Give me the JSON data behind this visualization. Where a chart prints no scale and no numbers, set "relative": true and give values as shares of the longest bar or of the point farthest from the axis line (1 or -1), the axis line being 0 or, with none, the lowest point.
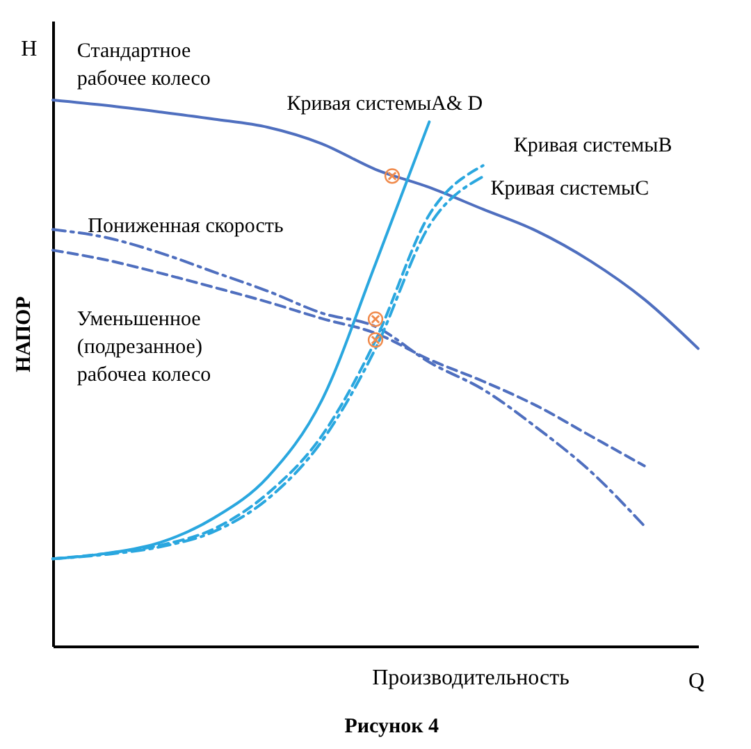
{
  "chart_data": {
    "type": "line",
    "relative": true,
    "tick_labels": false,
    "xlabel": "Производительность",
    "ylabel": "НАПОР",
    "annotations": [
      "H",
      "Q",
      "Рисунок 4",
      {
        "text": "⊗",
        "y": 0.86
      },
      {
        "text": "⊗",
        "y": 0.598
      },
      {
        "text": "⊗",
        "y": 0.56
      }
    ],
    "categories": [
      null,
      null,
      null,
      null,
      null,
      null,
      null,
      null,
      null,
      null,
      null,
      null,
      null
    ],
    "series": [
      {
        "name": "Стандартное\nрабочее колесо",
        "color": "#4f6fbf",
        "line_style": "solid",
        "values": [
          1.0,
          0.99,
          0.978,
          0.965,
          0.95,
          0.92,
          0.873,
          0.84,
          0.8,
          0.76,
          0.705,
          0.635,
          0.545
        ]
      },
      {
        "name": "Пониженная скорость",
        "color": "#4f6fbf",
        "line_style": "dashdot",
        "values": [
          0.763,
          0.748,
          0.72,
          0.685,
          0.65,
          0.61,
          0.585,
          0.52,
          0.47,
          0.4,
          0.32,
          0.22,
          null
        ]
      },
      {
        "name": "Уменьшенное\n(подрезанное)\nрабочеа колесо",
        "color": "#4f6fbf",
        "line_style": "dashed",
        "values": [
          0.725,
          0.707,
          0.683,
          0.657,
          0.63,
          0.6,
          0.573,
          0.525,
          0.485,
          0.44,
          0.385,
          0.33,
          null
        ]
      },
      {
        "name": "Кривая системыA& D",
        "color": "#2aa7df",
        "line_style": "solid",
        "values": [
          0.16,
          0.17,
          0.19,
          0.235,
          0.31,
          0.45,
          0.7,
          0.96,
          null,
          null,
          null,
          null,
          null
        ]
      },
      {
        "name": "Кривая системыB",
        "color": "#2aa7df",
        "line_style": "dashed",
        "values": [
          0.16,
          0.17,
          0.185,
          0.215,
          0.28,
          0.385,
          0.56,
          0.79,
          0.88,
          null,
          null,
          null,
          null
        ]
      },
      {
        "name": "Кривая системыC",
        "color": "#2aa7df",
        "line_style": "dashdot",
        "values": [
          0.16,
          0.168,
          0.182,
          0.21,
          0.27,
          0.375,
          0.545,
          0.77,
          0.86,
          null,
          null,
          null,
          null
        ]
      }
    ]
  }
}
